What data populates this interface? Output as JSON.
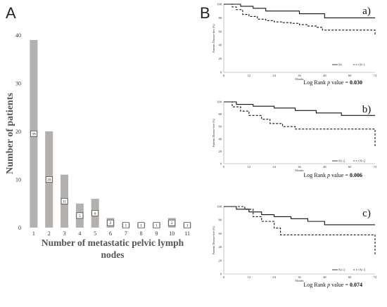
{
  "figure": {
    "panel_a_letter": "A",
    "panel_b_letter": "B"
  },
  "chart_data": [
    {
      "type": "bar",
      "panel": "A",
      "xlabel": "Number of metastatic pelvic lymph nodes",
      "xlabel_line1": "Number of metastatic pelvic lymph",
      "xlabel_line2": "nodes",
      "ylabel": "Number of patients",
      "ylim": [
        0,
        40
      ],
      "yticks": [
        "0",
        "10",
        "20",
        "30",
        "40"
      ],
      "categories": [
        "1",
        "2",
        "3",
        "4",
        "5",
        "6",
        "7",
        "8",
        "9",
        "10",
        "11"
      ],
      "values": [
        39,
        20,
        11,
        5,
        6,
        2,
        1,
        1,
        1,
        2,
        1
      ],
      "data_labels": [
        "39",
        "20",
        "11",
        "5",
        "6",
        "2",
        "1",
        "1",
        "1",
        "2",
        "1"
      ],
      "bar_color": "#b3b0ad"
    },
    {
      "type": "line",
      "panel": "a)",
      "panel_label": "a)",
      "xlabel": "Months",
      "ylabel": "Patients Disease-free (%)",
      "xlim": [
        0,
        72
      ],
      "ylim": [
        0,
        100
      ],
      "xticks": [
        "0",
        "12",
        "24",
        "36",
        "48",
        "60",
        "72"
      ],
      "yticks": [
        "0",
        "20",
        "40",
        "60",
        "80",
        "100"
      ],
      "legend": [
        "N1",
        "N>1"
      ],
      "legend_position": "bottom-right",
      "series": [
        {
          "name": "N1",
          "style": "solid",
          "x": [
            0,
            8,
            14,
            20,
            36,
            48,
            72
          ],
          "y": [
            100,
            97,
            94,
            90,
            86,
            80,
            80
          ]
        },
        {
          "name": "N>1",
          "style": "dashed",
          "x": [
            0,
            4,
            6,
            9,
            12,
            16,
            20,
            24,
            28,
            32,
            36,
            40,
            44,
            47,
            72
          ],
          "y": [
            100,
            96,
            92,
            85,
            82,
            78,
            76,
            74,
            73,
            72,
            70,
            68,
            66,
            62,
            55
          ]
        }
      ],
      "stat_text_prefix": "Log Rank ",
      "stat_text_p": "p",
      "stat_text_mid": " value = ",
      "stat_value": "0.030"
    },
    {
      "type": "line",
      "panel": "b)",
      "panel_label": "b)",
      "xlabel": "Months",
      "ylabel": "Patients Disease-free (%)",
      "xlim": [
        0,
        72
      ],
      "ylim": [
        0,
        100
      ],
      "xticks": [
        "0",
        "12",
        "24",
        "36",
        "48",
        "60",
        "72"
      ],
      "yticks": [
        "0",
        "20",
        "40",
        "60",
        "80",
        "100"
      ],
      "legend": [
        "N1-2",
        "N>2"
      ],
      "legend_position": "bottom-right",
      "series": [
        {
          "name": "N1-2",
          "style": "solid",
          "x": [
            0,
            6,
            14,
            24,
            34,
            44,
            56,
            72
          ],
          "y": [
            100,
            96,
            93,
            90,
            86,
            82,
            78,
            78
          ]
        },
        {
          "name": "N>2",
          "style": "dashed",
          "x": [
            0,
            4,
            8,
            12,
            18,
            22,
            28,
            34,
            37,
            70,
            72
          ],
          "y": [
            100,
            92,
            85,
            78,
            72,
            65,
            60,
            56,
            56,
            56,
            27
          ]
        }
      ],
      "stat_text_prefix": "Log Rank ",
      "stat_text_p": "p",
      "stat_text_mid": " value = ",
      "stat_value": "0.006"
    },
    {
      "type": "line",
      "panel": "c)",
      "panel_label": "c)",
      "xlabel": "Months",
      "ylabel": "Patients Disease-free (%)",
      "xlim": [
        0,
        72
      ],
      "ylim": [
        0,
        100
      ],
      "xticks": [
        "0",
        "12",
        "24",
        "36",
        "48",
        "60",
        "72"
      ],
      "yticks": [
        "0",
        "20",
        "40",
        "60",
        "80",
        "100"
      ],
      "legend": [
        "N1-3",
        "N>3"
      ],
      "legend_position": "bottom-right",
      "series": [
        {
          "name": "N1-3",
          "style": "solid",
          "x": [
            0,
            6,
            12,
            18,
            24,
            32,
            40,
            48,
            72
          ],
          "y": [
            100,
            96,
            92,
            88,
            85,
            82,
            78,
            73,
            73
          ]
        },
        {
          "name": "N>3",
          "style": "dashed",
          "x": [
            0,
            10,
            14,
            18,
            24,
            27,
            71,
            72
          ],
          "y": [
            100,
            96,
            85,
            78,
            68,
            58,
            58,
            28
          ]
        }
      ],
      "stat_text_prefix": "Log Rank ",
      "stat_text_p": "p",
      "stat_text_mid": " value = ",
      "stat_value": "0.074"
    }
  ]
}
